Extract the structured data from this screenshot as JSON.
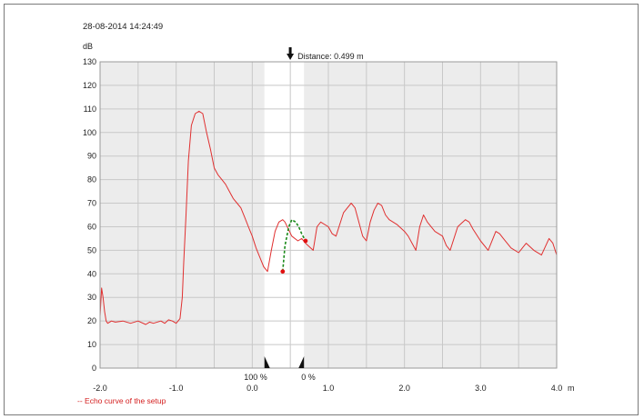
{
  "timestamp": "28-08-2014 14:24:49",
  "y_unit": "dB",
  "x_unit": "m",
  "distance_label": "Distance: 0.499 m",
  "window_left_label": "100 %",
  "window_right_label": "0 %",
  "legend_label": "-- Echo curve of the setup",
  "colors": {
    "plot_bg": "#ececec",
    "window_bg": "#ffffff",
    "grid": "#c8c8c8",
    "echo_curve": "#e03030",
    "selected_echo": "#1a8a1a",
    "marker_point": "#e01010"
  },
  "chart_data": {
    "type": "line",
    "title": "",
    "xlabel": "m",
    "ylabel": "dB",
    "xlim": [
      -2.0,
      4.0
    ],
    "ylim": [
      0,
      130
    ],
    "x_ticks": [
      {
        "value": -2.0,
        "label": "-2.0"
      },
      {
        "value": -1.0,
        "label": "-1.0"
      },
      {
        "value": 0.0,
        "label": "0.0"
      },
      {
        "value": 1.0,
        "label": "1.0"
      },
      {
        "value": 2.0,
        "label": "2.0"
      },
      {
        "value": 3.0,
        "label": "3.0"
      },
      {
        "value": 4.0,
        "label": "4.0"
      }
    ],
    "y_ticks": [
      0,
      10,
      20,
      30,
      40,
      50,
      60,
      70,
      80,
      90,
      100,
      110,
      120,
      130
    ],
    "grid": true,
    "distance_marker_x": 0.499,
    "window_x": [
      0.16,
      0.68
    ],
    "series": [
      {
        "name": "Echo curve of the setup",
        "x": [
          -2.0,
          -1.98,
          -1.96,
          -1.94,
          -1.92,
          -1.9,
          -1.85,
          -1.8,
          -1.7,
          -1.6,
          -1.5,
          -1.4,
          -1.35,
          -1.3,
          -1.2,
          -1.15,
          -1.1,
          -1.05,
          -1.0,
          -0.95,
          -0.92,
          -0.9,
          -0.87,
          -0.84,
          -0.8,
          -0.75,
          -0.7,
          -0.65,
          -0.6,
          -0.55,
          -0.5,
          -0.45,
          -0.4,
          -0.35,
          -0.3,
          -0.25,
          -0.2,
          -0.15,
          -0.1,
          -0.05,
          0.0,
          0.05,
          0.1,
          0.15,
          0.2,
          0.25,
          0.3,
          0.35,
          0.4,
          0.43,
          0.52,
          0.6,
          0.65,
          0.7,
          0.8,
          0.85,
          0.9,
          1.0,
          1.05,
          1.1,
          1.2,
          1.3,
          1.35,
          1.4,
          1.45,
          1.5,
          1.55,
          1.6,
          1.65,
          1.7,
          1.75,
          1.8,
          1.9,
          2.0,
          2.05,
          2.1,
          2.15,
          2.2,
          2.25,
          2.3,
          2.4,
          2.5,
          2.55,
          2.6,
          2.7,
          2.8,
          2.85,
          2.9,
          3.0,
          3.1,
          3.2,
          3.25,
          3.3,
          3.4,
          3.5,
          3.55,
          3.6,
          3.7,
          3.8,
          3.9,
          3.95,
          4.0
        ],
        "y": [
          22,
          34,
          30,
          24,
          20,
          19,
          20,
          19.5,
          20,
          19,
          20,
          18.5,
          19.5,
          19,
          20,
          19,
          20.5,
          20,
          19,
          21,
          30,
          45,
          65,
          88,
          103,
          108,
          109,
          108,
          100,
          93,
          85,
          82,
          80,
          78,
          75,
          72,
          70,
          68,
          64,
          60,
          56,
          51,
          47,
          43,
          41,
          50,
          58,
          62,
          63,
          62,
          56,
          54,
          55,
          53,
          50,
          60,
          62,
          60,
          57,
          56,
          66,
          70,
          68,
          62,
          56,
          54,
          62,
          67,
          70,
          69,
          65,
          63,
          61,
          58,
          56,
          53,
          50,
          60,
          65,
          62,
          58,
          56,
          52,
          50,
          60,
          63,
          62,
          59,
          54,
          50,
          58,
          57,
          55,
          51,
          49,
          51,
          53,
          50,
          48,
          55,
          53,
          48
        ],
        "color": "#e03030"
      },
      {
        "name": "",
        "x": [
          0.4,
          0.43,
          0.48,
          0.52,
          0.57,
          0.61,
          0.65,
          0.7
        ],
        "y": [
          41,
          52,
          60,
          63,
          62,
          60,
          57,
          54
        ],
        "color": "#1a8a1a",
        "dashed": true
      }
    ],
    "points": [
      {
        "x": 0.4,
        "y": 41
      },
      {
        "x": 0.7,
        "y": 54
      }
    ]
  }
}
